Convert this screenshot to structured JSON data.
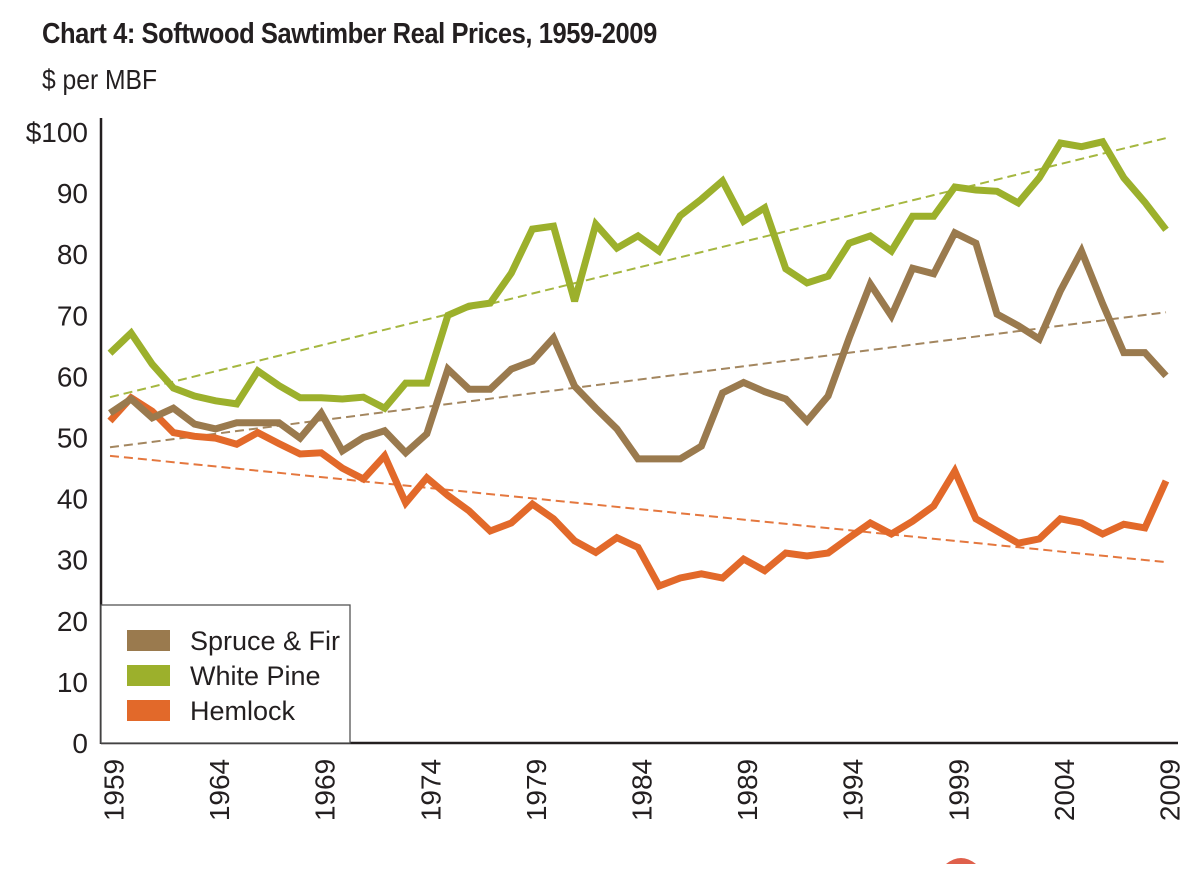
{
  "chart_data": {
    "type": "line",
    "title": "Chart 4: Softwood Sawtimber Real Prices, 1959-2009",
    "subtitle": "$ per MBF",
    "xlabel": "",
    "ylabel": "$ per MBF",
    "ylim": [
      0,
      100
    ],
    "xlim": [
      1959,
      2009
    ],
    "y_ticks": [
      0,
      10,
      20,
      30,
      40,
      50,
      60,
      70,
      80,
      90,
      100
    ],
    "y_tick_labels": [
      "0",
      "10",
      "20",
      "30",
      "40",
      "50",
      "60",
      "70",
      "80",
      "90",
      "$100"
    ],
    "x_ticks": [
      1959,
      1964,
      1969,
      1974,
      1979,
      1984,
      1989,
      1994,
      1999,
      2004,
      2009
    ],
    "x_tick_labels": [
      "1959",
      "1964",
      "1969",
      "1974",
      "1979",
      "1984",
      "1989",
      "1994",
      "1999",
      "2004",
      "2009"
    ],
    "grid": false,
    "legend_position": "bottom-left",
    "x": [
      1959,
      1960,
      1961,
      1962,
      1963,
      1964,
      1965,
      1966,
      1967,
      1968,
      1969,
      1970,
      1971,
      1972,
      1973,
      1974,
      1975,
      1976,
      1977,
      1978,
      1979,
      1980,
      1981,
      1982,
      1983,
      1984,
      1985,
      1986,
      1987,
      1988,
      1989,
      1990,
      1991,
      1992,
      1993,
      1994,
      1995,
      1996,
      1997,
      1998,
      1999,
      2000,
      2001,
      2002,
      2003,
      2004,
      2005,
      2006,
      2007,
      2008,
      2009
    ],
    "series": [
      {
        "name": "Spruce & Fir",
        "color": "#9a7a4e",
        "values": [
          54.0,
          56.3,
          53.2,
          54.8,
          52.2,
          51.4,
          52.4,
          52.4,
          52.4,
          49.9,
          54.0,
          47.8,
          50.0,
          51.1,
          47.5,
          50.6,
          61.2,
          57.9,
          57.9,
          61.2,
          62.5,
          66.3,
          58.4,
          54.8,
          51.4,
          46.5,
          46.5,
          46.5,
          48.6,
          57.3,
          59.0,
          57.5,
          56.3,
          52.7,
          56.8,
          66.3,
          75.1,
          69.9,
          77.7,
          76.8,
          83.5,
          81.8,
          70.2,
          68.3,
          66.1,
          74.0,
          80.5,
          71.9,
          63.9,
          63.9,
          60.1
        ],
        "trend": {
          "start": 48.4,
          "end": 70.5
        }
      },
      {
        "name": "White Pine",
        "color": "#9cb02c",
        "values": [
          63.8,
          67.1,
          62.0,
          58.1,
          56.8,
          56.0,
          55.5,
          60.9,
          58.5,
          56.5,
          56.5,
          56.3,
          56.6,
          54.8,
          58.9,
          58.9,
          70.0,
          71.5,
          72.0,
          76.9,
          84.1,
          84.6,
          72.3,
          84.9,
          81.0,
          83.0,
          80.5,
          86.3,
          89.0,
          92.0,
          85.4,
          87.6,
          77.6,
          75.3,
          76.4,
          81.8,
          83.0,
          80.5,
          86.2,
          86.2,
          91.0,
          90.5,
          90.3,
          88.4,
          92.5,
          98.2,
          97.6,
          98.4,
          92.5,
          88.5,
          84.0
        ],
        "trend": {
          "start": 56.6,
          "end": 99.0
        }
      },
      {
        "name": "Hemlock",
        "color": "#e2692a",
        "values": [
          52.7,
          56.5,
          54.3,
          50.8,
          50.2,
          49.9,
          48.9,
          50.8,
          49.0,
          47.3,
          47.5,
          45.0,
          43.2,
          47.0,
          39.3,
          43.4,
          40.5,
          38.0,
          34.7,
          36.0,
          39.1,
          36.7,
          33.1,
          31.2,
          33.6,
          32.0,
          25.7,
          27.0,
          27.7,
          27.0,
          30.1,
          28.2,
          31.1,
          30.6,
          31.1,
          33.6,
          36.0,
          34.2,
          36.3,
          38.8,
          44.5,
          36.7,
          34.7,
          32.7,
          33.4,
          36.7,
          36.0,
          34.2,
          35.8,
          35.2,
          42.9
        ],
        "trend": {
          "start": 47.0,
          "end": 29.6
        }
      }
    ]
  },
  "decoration": {
    "bottom_arc_color": "#d9442b"
  }
}
